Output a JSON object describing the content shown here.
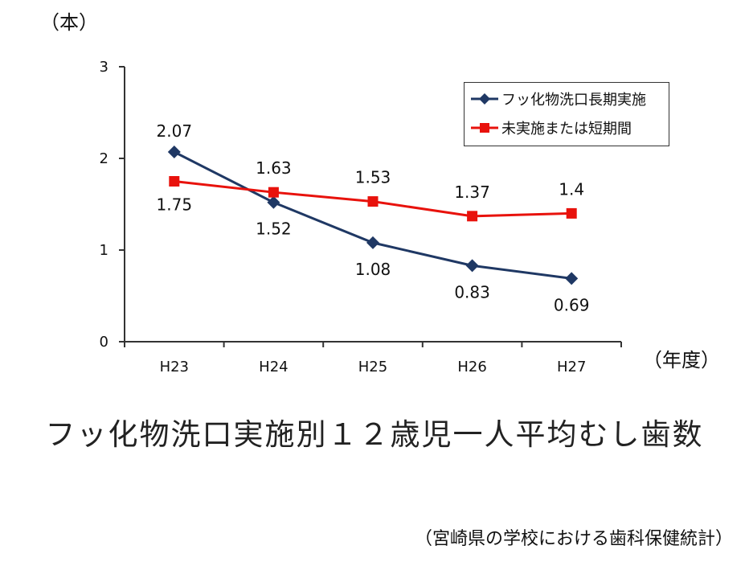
{
  "y_unit": "（本）",
  "x_unit": "（年度）",
  "title": "フッ化物洗口実施別１２歳児一人平均むし歯数",
  "source": "（宮崎県の学校における歯科保健統計）",
  "colors": {
    "series1": "#1f3864",
    "series2": "#e8120c",
    "axis": "#333333"
  },
  "chart_data": {
    "type": "line",
    "categories": [
      "H23",
      "H24",
      "H25",
      "H26",
      "H27"
    ],
    "ylim": [
      0,
      3
    ],
    "yticks": [
      "0",
      "1",
      "2",
      "3"
    ],
    "grid": false,
    "legend_position": "top-right",
    "series": [
      {
        "name": "フッ化物洗口長期実施",
        "marker": "diamond",
        "values": [
          2.07,
          1.52,
          1.08,
          0.83,
          0.69
        ],
        "labels": [
          "2.07",
          "1.52",
          "1.08",
          "0.83",
          "0.69"
        ]
      },
      {
        "name": "未実施または短期間",
        "marker": "square",
        "values": [
          1.75,
          1.63,
          1.53,
          1.37,
          1.4
        ],
        "labels": [
          "1.75",
          "1.63",
          "1.53",
          "1.37",
          "1.4"
        ]
      }
    ]
  }
}
